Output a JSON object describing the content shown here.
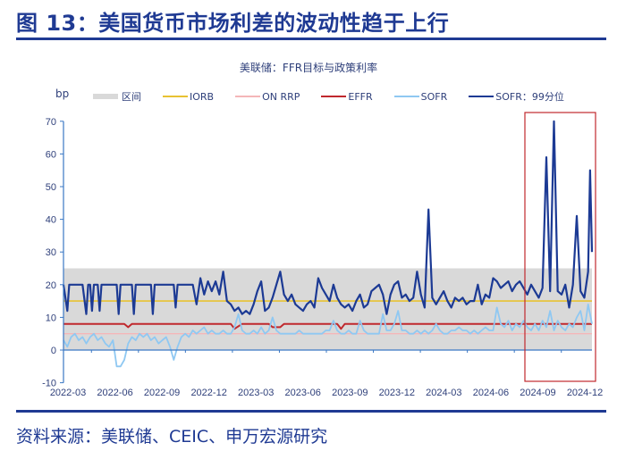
{
  "figure": {
    "title": "图 13：美国货币市场利差的波动性趋于上行",
    "source": "资料来源：美联储、CEIC、申万宏源研究"
  },
  "chart_data": {
    "type": "line",
    "title": "美联储：FFR目标与政策利率",
    "ylabel": "bp",
    "xlabel": "",
    "ylim": [
      -10,
      70
    ],
    "yticks": [
      70,
      60,
      50,
      40,
      30,
      20,
      10,
      0,
      -10
    ],
    "xticks": [
      "2022-03",
      "2022-06",
      "2022-09",
      "2022-12",
      "2023-03",
      "2023-06",
      "2023-09",
      "2023-12",
      "2024-03",
      "2024-06",
      "2024-09",
      "2024-12"
    ],
    "grid": false,
    "legend_position": "top",
    "legend": [
      {
        "name": "区间",
        "kind": "band",
        "color": "#d9d9d9"
      },
      {
        "name": "IORB",
        "kind": "line",
        "color": "#e8c232"
      },
      {
        "name": "ON RRP",
        "kind": "line",
        "color": "#f4b6b8"
      },
      {
        "name": "EFFR",
        "kind": "line",
        "color": "#c0282d"
      },
      {
        "name": "SOFR",
        "kind": "line",
        "color": "#8fc8f2"
      },
      {
        "name": "SOFR：99分位",
        "kind": "line",
        "color": "#1c3a94"
      }
    ],
    "band": {
      "name": "区间",
      "low": 0,
      "high": 25
    },
    "x_range": [
      "2022-03",
      "2024-12"
    ],
    "n_points": 140,
    "series": [
      {
        "name": "IORB",
        "color": "#e8c232",
        "width": 1.6,
        "values_const": 15
      },
      {
        "name": "ON RRP",
        "color": "#f4b6b8",
        "width": 1.4,
        "values_const": 5
      },
      {
        "name": "EFFR",
        "color": "#c0282d",
        "width": 2,
        "points": [
          [
            0,
            8
          ],
          [
            16,
            8
          ],
          [
            17,
            7
          ],
          [
            18,
            8
          ],
          [
            44,
            8
          ],
          [
            45,
            6.5
          ],
          [
            47,
            8
          ],
          [
            54,
            8
          ],
          [
            55,
            7
          ],
          [
            57,
            7
          ],
          [
            58,
            8
          ],
          [
            72,
            8
          ],
          [
            73,
            6.5
          ],
          [
            74,
            8
          ],
          [
            139,
            8
          ]
        ]
      },
      {
        "name": "SOFR",
        "color": "#8fc8f2",
        "width": 1.8,
        "points": [
          [
            0,
            3
          ],
          [
            1,
            1
          ],
          [
            2,
            4
          ],
          [
            3,
            5
          ],
          [
            4,
            3
          ],
          [
            5,
            4
          ],
          [
            6,
            2
          ],
          [
            7,
            4
          ],
          [
            8,
            5
          ],
          [
            9,
            3
          ],
          [
            10,
            4
          ],
          [
            11,
            2
          ],
          [
            12,
            1
          ],
          [
            13,
            3
          ],
          [
            14,
            -5
          ],
          [
            15,
            -5
          ],
          [
            16,
            -3
          ],
          [
            17,
            2
          ],
          [
            18,
            4
          ],
          [
            19,
            3
          ],
          [
            20,
            5
          ],
          [
            21,
            4
          ],
          [
            22,
            5
          ],
          [
            23,
            3
          ],
          [
            24,
            4
          ],
          [
            25,
            2
          ],
          [
            26,
            3
          ],
          [
            27,
            4
          ],
          [
            28,
            1
          ],
          [
            29,
            -3
          ],
          [
            30,
            1
          ],
          [
            31,
            4
          ],
          [
            32,
            5
          ],
          [
            33,
            4
          ],
          [
            34,
            6
          ],
          [
            35,
            5
          ],
          [
            36,
            6
          ],
          [
            37,
            7
          ],
          [
            38,
            5
          ],
          [
            39,
            6
          ],
          [
            40,
            5
          ],
          [
            41,
            5
          ],
          [
            42,
            6
          ],
          [
            43,
            5
          ],
          [
            44,
            5
          ],
          [
            45,
            7
          ],
          [
            46,
            11
          ],
          [
            47,
            6
          ],
          [
            48,
            5
          ],
          [
            49,
            5
          ],
          [
            50,
            6
          ],
          [
            51,
            5
          ],
          [
            52,
            7
          ],
          [
            53,
            5
          ],
          [
            54,
            6
          ],
          [
            55,
            10
          ],
          [
            56,
            6
          ],
          [
            57,
            5
          ],
          [
            58,
            5
          ],
          [
            59,
            5
          ],
          [
            60,
            5
          ],
          [
            61,
            5
          ],
          [
            62,
            6
          ],
          [
            63,
            5
          ],
          [
            64,
            5
          ],
          [
            65,
            5
          ],
          [
            66,
            5
          ],
          [
            67,
            5
          ],
          [
            68,
            5
          ],
          [
            69,
            6
          ],
          [
            70,
            6
          ],
          [
            71,
            9
          ],
          [
            72,
            6
          ],
          [
            73,
            5
          ],
          [
            74,
            5
          ],
          [
            75,
            6
          ],
          [
            76,
            5
          ],
          [
            77,
            5
          ],
          [
            78,
            9
          ],
          [
            79,
            6
          ],
          [
            80,
            5
          ],
          [
            81,
            5
          ],
          [
            82,
            5
          ],
          [
            83,
            5
          ],
          [
            84,
            11
          ],
          [
            85,
            6
          ],
          [
            86,
            6
          ],
          [
            87,
            8
          ],
          [
            88,
            12
          ],
          [
            89,
            6
          ],
          [
            90,
            6
          ],
          [
            91,
            5
          ],
          [
            92,
            5
          ],
          [
            93,
            6
          ],
          [
            94,
            5
          ],
          [
            95,
            6
          ],
          [
            96,
            5
          ],
          [
            97,
            6
          ],
          [
            98,
            8
          ],
          [
            99,
            6
          ],
          [
            100,
            5
          ],
          [
            101,
            5
          ],
          [
            102,
            6
          ],
          [
            103,
            6
          ],
          [
            104,
            7
          ],
          [
            105,
            6
          ],
          [
            106,
            6
          ],
          [
            107,
            5
          ],
          [
            108,
            6
          ],
          [
            109,
            5
          ],
          [
            110,
            6
          ],
          [
            111,
            7
          ],
          [
            112,
            6
          ],
          [
            113,
            6
          ],
          [
            114,
            13
          ],
          [
            115,
            8
          ],
          [
            116,
            7
          ],
          [
            117,
            9
          ],
          [
            118,
            6
          ],
          [
            119,
            8
          ],
          [
            120,
            7
          ],
          [
            121,
            9
          ],
          [
            122,
            7
          ],
          [
            123,
            6
          ],
          [
            124,
            8
          ],
          [
            125,
            6
          ],
          [
            126,
            9
          ],
          [
            127,
            7
          ],
          [
            128,
            12
          ],
          [
            129,
            6
          ],
          [
            130,
            9
          ],
          [
            131,
            7
          ],
          [
            132,
            6
          ],
          [
            133,
            8
          ],
          [
            134,
            7
          ],
          [
            135,
            10
          ],
          [
            136,
            12
          ],
          [
            137,
            6
          ],
          [
            138,
            14
          ],
          [
            139,
            8
          ]
        ]
      },
      {
        "name": "SOFR：99分位",
        "color": "#1c3a94",
        "width": 2.2,
        "points": [
          [
            0,
            20
          ],
          [
            1,
            12
          ],
          [
            1.5,
            20
          ],
          [
            5,
            20
          ],
          [
            6,
            11
          ],
          [
            6.5,
            20
          ],
          [
            7,
            20
          ],
          [
            7.5,
            12
          ],
          [
            8,
            20
          ],
          [
            9,
            20
          ],
          [
            9.5,
            12
          ],
          [
            10,
            20
          ],
          [
            14,
            20
          ],
          [
            14.5,
            11
          ],
          [
            15,
            20
          ],
          [
            18,
            20
          ],
          [
            18.5,
            11
          ],
          [
            19,
            20
          ],
          [
            23,
            20
          ],
          [
            23.5,
            11
          ],
          [
            24,
            20
          ],
          [
            29,
            20
          ],
          [
            29.5,
            13
          ],
          [
            30,
            20
          ],
          [
            34,
            20
          ],
          [
            35,
            14
          ],
          [
            36,
            22
          ],
          [
            37,
            17
          ],
          [
            38,
            21
          ],
          [
            39,
            18
          ],
          [
            40,
            21
          ],
          [
            41,
            17
          ],
          [
            42,
            24
          ],
          [
            43,
            15
          ],
          [
            44,
            14
          ],
          [
            45,
            12
          ],
          [
            46,
            13
          ],
          [
            47,
            11
          ],
          [
            48,
            12
          ],
          [
            49,
            11
          ],
          [
            50,
            14
          ],
          [
            51,
            18
          ],
          [
            52,
            21
          ],
          [
            53,
            12
          ],
          [
            54,
            13
          ],
          [
            55,
            16
          ],
          [
            56,
            20
          ],
          [
            57,
            24
          ],
          [
            58,
            17
          ],
          [
            59,
            15
          ],
          [
            60,
            17
          ],
          [
            61,
            14
          ],
          [
            62,
            13
          ],
          [
            63,
            12
          ],
          [
            64,
            14
          ],
          [
            65,
            15
          ],
          [
            66,
            13
          ],
          [
            67,
            22
          ],
          [
            68,
            19
          ],
          [
            69,
            17
          ],
          [
            70,
            15
          ],
          [
            71,
            20
          ],
          [
            72,
            16
          ],
          [
            73,
            14
          ],
          [
            74,
            13
          ],
          [
            75,
            14
          ],
          [
            76,
            12
          ],
          [
            77,
            15
          ],
          [
            78,
            17
          ],
          [
            79,
            13
          ],
          [
            80,
            14
          ],
          [
            81,
            18
          ],
          [
            82,
            19
          ],
          [
            83,
            20
          ],
          [
            84,
            17
          ],
          [
            85,
            11
          ],
          [
            86,
            17
          ],
          [
            87,
            20
          ],
          [
            88,
            21
          ],
          [
            89,
            16
          ],
          [
            90,
            17
          ],
          [
            91,
            15
          ],
          [
            92,
            16
          ],
          [
            93,
            24
          ],
          [
            94,
            17
          ],
          [
            95,
            13
          ],
          [
            96,
            43
          ],
          [
            97,
            16
          ],
          [
            98,
            14
          ],
          [
            99,
            16
          ],
          [
            100,
            18
          ],
          [
            101,
            15
          ],
          [
            102,
            13
          ],
          [
            103,
            16
          ],
          [
            104,
            15
          ],
          [
            105,
            16
          ],
          [
            106,
            14
          ],
          [
            107,
            15
          ],
          [
            108,
            15
          ],
          [
            109,
            20
          ],
          [
            110,
            14
          ],
          [
            111,
            17
          ],
          [
            112,
            16
          ],
          [
            113,
            22
          ],
          [
            114,
            21
          ],
          [
            115,
            19
          ],
          [
            116,
            20
          ],
          [
            117,
            21
          ],
          [
            118,
            18
          ],
          [
            119,
            20
          ],
          [
            120,
            21
          ],
          [
            121,
            19
          ],
          [
            122,
            17
          ],
          [
            123,
            20
          ],
          [
            124,
            18
          ],
          [
            125,
            16
          ],
          [
            126,
            19
          ],
          [
            127,
            59
          ],
          [
            128,
            18
          ],
          [
            129,
            70
          ],
          [
            130,
            18
          ],
          [
            131,
            17
          ],
          [
            132,
            20
          ],
          [
            133,
            13
          ],
          [
            134,
            20
          ],
          [
            135,
            41
          ],
          [
            136,
            18
          ],
          [
            137,
            16
          ],
          [
            138,
            24
          ],
          [
            138.5,
            55
          ],
          [
            139,
            30
          ]
        ]
      }
    ],
    "annotation": {
      "type": "highlight-box",
      "from": "2024-08",
      "to": "2024-12",
      "color": "#c0282d"
    }
  }
}
